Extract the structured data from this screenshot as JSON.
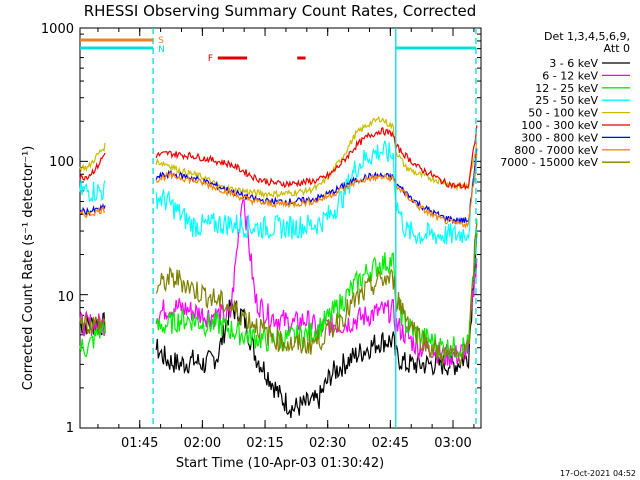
{
  "chart_data": {
    "type": "line",
    "title": "RHESSI Observing Summary Count Rates, Corrected",
    "xlabel": "Start Time (10-Apr-03 01:30:42)",
    "ylabel": "Corrected Count Rate (s⁻¹ detector⁻¹)",
    "yscale": "log",
    "ylim": [
      1,
      1000
    ],
    "ytick_labels": [
      "1",
      "10",
      "100",
      "1000"
    ],
    "xlim_minutes": [
      0,
      96
    ],
    "xtick_labels": [
      "01:45",
      "02:00",
      "02:15",
      "02:30",
      "02:45",
      "03:00"
    ],
    "xtick_minutes": [
      14.3,
      29.3,
      44.3,
      59.3,
      74.3,
      89.3
    ],
    "legend_header": [
      "Det 1,3,4,5,6,9,",
      "Att 0"
    ],
    "timestamp": "17-Oct-2021 04:52",
    "flag_bars": {
      "S": {
        "label": "S",
        "color": "#f08020",
        "x_minutes": [
          0,
          17.5
        ]
      },
      "N": {
        "label": "N",
        "color": "#00e0e0",
        "segments": [
          [
            0,
            17.5
          ],
          [
            75.6,
            94.8
          ]
        ]
      },
      "F": {
        "label": "F",
        "color": "#e00000",
        "segments": [
          [
            33,
            40
          ],
          [
            52,
            54
          ]
        ]
      }
    },
    "vlines": [
      {
        "x_minutes": 17.5,
        "style": "dashed",
        "color": "#00dddd"
      },
      {
        "x_minutes": 75.6,
        "style": "solid",
        "color": "#00dddd"
      },
      {
        "x_minutes": 94.8,
        "style": "dashed",
        "color": "#00dddd"
      }
    ],
    "x": [
      0,
      2,
      4,
      6,
      9,
      12,
      15,
      17.5,
      18,
      21,
      24,
      27,
      30,
      33,
      36,
      39,
      42,
      45,
      48,
      51,
      54,
      57,
      60,
      63,
      66,
      69,
      72,
      75,
      75.6,
      78,
      81,
      84,
      87,
      90,
      93,
      95
    ],
    "series": [
      {
        "name": "3 - 6 keV",
        "color": "#000000",
        "values": [
          6,
          6,
          6,
          6,
          null,
          null,
          null,
          null,
          4,
          3.2,
          3,
          3.2,
          3,
          3.5,
          8,
          7,
          3.5,
          2.5,
          1.7,
          1.4,
          1.5,
          1.6,
          2.5,
          3,
          3.5,
          4,
          4.5,
          4.5,
          3.5,
          3,
          3,
          3,
          3,
          3,
          3.5,
          30
        ]
      },
      {
        "name": "6 - 12 keV",
        "color": "#ff00ff",
        "values": [
          6,
          6,
          6,
          6,
          null,
          null,
          null,
          null,
          7,
          8,
          8,
          7.5,
          7,
          7,
          7,
          60,
          9,
          7,
          6.5,
          6,
          6.5,
          5.5,
          6,
          6,
          6.5,
          7,
          7.5,
          7.5,
          6,
          5,
          4,
          4,
          3.5,
          3.5,
          4,
          20
        ]
      },
      {
        "name": "12 - 25 keV",
        "color": "#00ee00",
        "values": [
          4,
          4,
          5,
          6,
          null,
          null,
          null,
          null,
          5.5,
          6,
          6.5,
          6.5,
          6,
          6,
          5.5,
          5,
          4.8,
          4.5,
          4.6,
          4.8,
          5,
          5.5,
          7,
          9,
          12,
          15,
          17,
          18,
          9,
          6,
          5,
          4.5,
          4,
          4,
          4.2,
          30
        ]
      },
      {
        "name": "25 - 50 keV",
        "color": "#00ffff",
        "values": [
          60,
          60,
          60,
          60,
          null,
          null,
          null,
          null,
          55,
          50,
          40,
          33,
          33,
          34,
          34,
          33,
          32,
          32,
          32,
          32,
          33,
          34,
          40,
          55,
          90,
          110,
          120,
          110,
          50,
          30,
          28,
          28,
          28,
          28,
          30,
          120
        ]
      },
      {
        "name": "50 - 100 keV",
        "color": "#ccbb00",
        "values": [
          90,
          90,
          110,
          130,
          null,
          null,
          null,
          null,
          100,
          95,
          85,
          80,
          75,
          65,
          62,
          60,
          58,
          57,
          57,
          58,
          60,
          64,
          80,
          110,
          160,
          190,
          210,
          180,
          120,
          90,
          80,
          75,
          70,
          65,
          65,
          140
        ]
      },
      {
        "name": "100 - 300 keV",
        "color": "#ee0000",
        "values": [
          75,
          78,
          90,
          115,
          null,
          null,
          null,
          null,
          110,
          115,
          112,
          110,
          105,
          100,
          95,
          85,
          75,
          70,
          68,
          68,
          70,
          72,
          80,
          100,
          130,
          155,
          170,
          160,
          130,
          110,
          90,
          80,
          70,
          65,
          65,
          180
        ]
      },
      {
        "name": "300 - 800 keV",
        "color": "#0000ee",
        "values": [
          42,
          42,
          43,
          45,
          null,
          null,
          null,
          null,
          75,
          80,
          78,
          75,
          70,
          65,
          60,
          55,
          52,
          50,
          50,
          50,
          51,
          53,
          58,
          65,
          72,
          77,
          78,
          76,
          68,
          58,
          48,
          42,
          38,
          36,
          36,
          120
        ]
      },
      {
        "name": "800 - 7000 keV",
        "color": "#ff8800",
        "values": [
          40,
          40,
          42,
          44,
          null,
          null,
          null,
          null,
          72,
          78,
          76,
          72,
          68,
          63,
          58,
          53,
          50,
          48,
          48,
          48,
          49,
          51,
          56,
          62,
          70,
          74,
          76,
          74,
          66,
          56,
          46,
          40,
          36,
          34,
          34,
          110
        ]
      },
      {
        "name": "7000 - 15000 keV",
        "color": "#808000",
        "values": [
          7,
          6,
          6,
          6,
          null,
          null,
          null,
          null,
          11,
          13,
          13,
          11,
          10,
          9,
          8,
          7,
          6,
          5,
          4.5,
          4.2,
          4.2,
          4.5,
          5.5,
          7,
          9,
          11,
          13,
          13,
          10,
          7,
          5,
          4,
          3.5,
          3.5,
          3.8,
          40
        ]
      }
    ]
  }
}
